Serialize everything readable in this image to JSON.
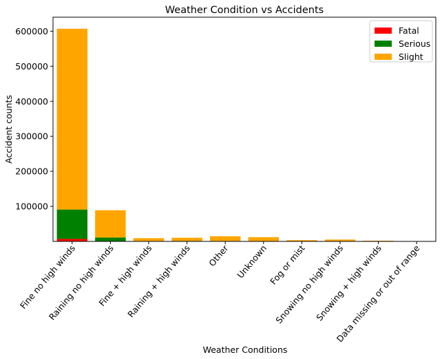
{
  "chart_data": {
    "type": "bar",
    "stacked": true,
    "title": "Weather Condition vs Accidents",
    "xlabel": "Weather Conditions",
    "ylabel": "Accident counts",
    "categories": [
      "Fine no high winds",
      "Raining no high winds",
      "Fine + high winds",
      "Raining + high winds",
      "Other",
      "Unknown",
      "Fog or mist",
      "Snowing no high winds",
      "Snowing + high winds",
      "Data missing or out of range"
    ],
    "series": [
      {
        "name": "Fatal",
        "color": "#ff0000",
        "values": [
          7000,
          1000,
          150,
          150,
          150,
          100,
          80,
          30,
          10,
          2
        ]
      },
      {
        "name": "Serious",
        "color": "#008000",
        "values": [
          84000,
          10000,
          1000,
          1300,
          1100,
          900,
          500,
          500,
          100,
          5
        ]
      },
      {
        "name": "Slight",
        "color": "#ffa500",
        "values": [
          516000,
          78000,
          8000,
          9000,
          13500,
          11000,
          3000,
          4800,
          1800,
          20
        ]
      }
    ],
    "ylim": [
      0,
      640000
    ],
    "yticks": [
      100000,
      200000,
      300000,
      400000,
      500000,
      600000
    ],
    "ytick_labels": [
      "100000",
      "200000",
      "300000",
      "400000",
      "500000",
      "600000"
    ],
    "legend_position": "top-right",
    "grid": false
  }
}
